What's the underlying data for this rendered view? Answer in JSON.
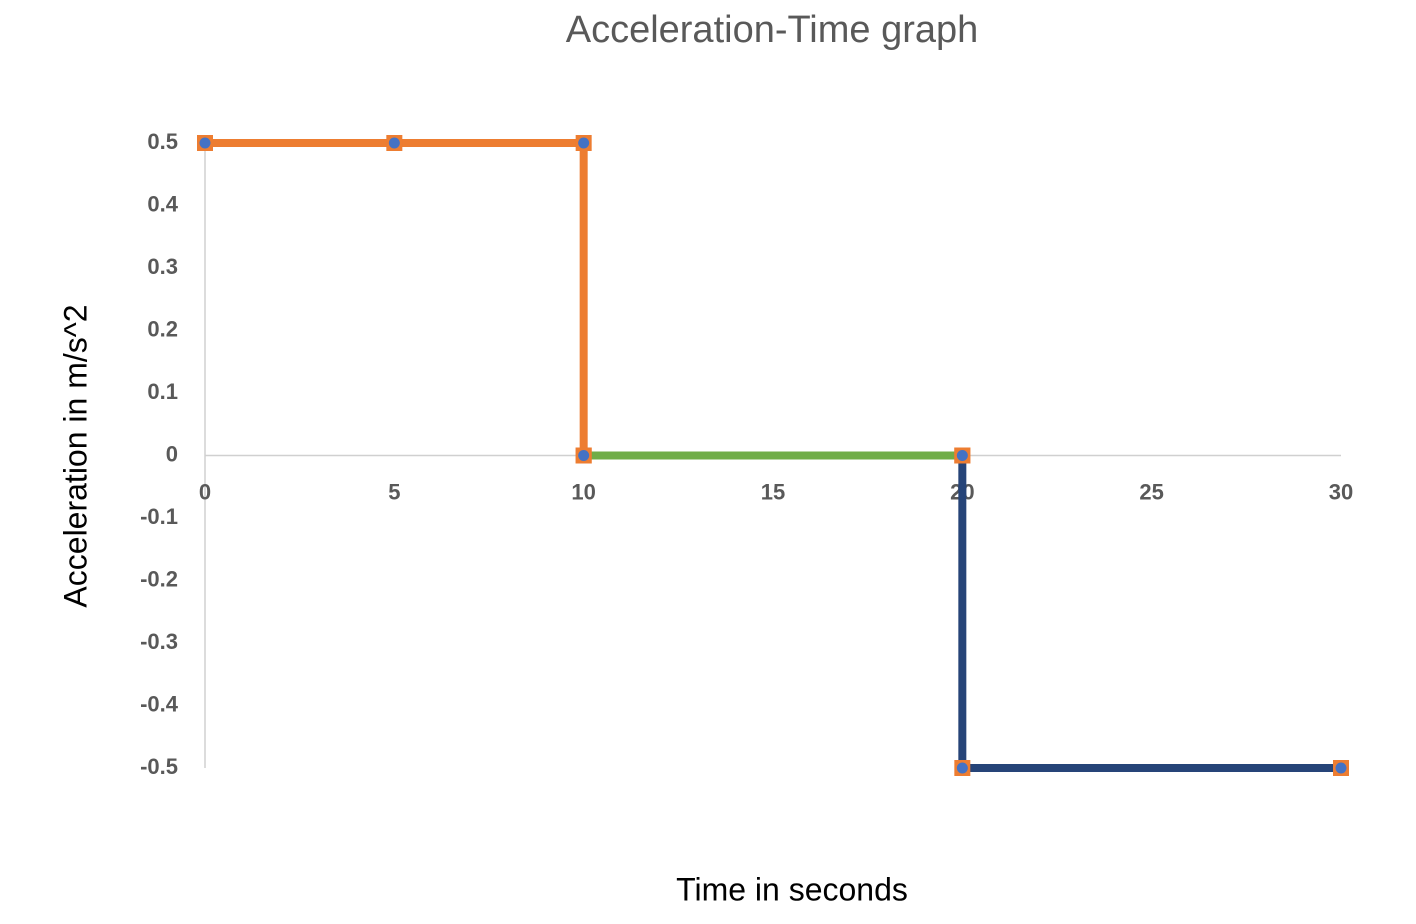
{
  "chart_data": {
    "type": "line",
    "title": "Acceleration-Time graph",
    "x_label": "Time in seconds",
    "y_label": "Acceleration in m/s^2",
    "series": [
      {
        "color": "#ed7d31",
        "x": [
          0,
          5,
          10,
          10
        ],
        "values": [
          0.5,
          0.5,
          0.5,
          0
        ]
      },
      {
        "color": "#70ad47",
        "x": [
          10,
          20
        ],
        "values": [
          0,
          0
        ]
      },
      {
        "color": "#264478",
        "x": [
          20,
          20,
          30
        ],
        "values": [
          0,
          -0.5,
          -0.5
        ]
      }
    ],
    "marker": {
      "fill": "#4472c4",
      "edge": "#ed7d31"
    },
    "xlim": [
      0,
      30
    ],
    "xticks": [
      0,
      5,
      10,
      15,
      20,
      25,
      30
    ],
    "ylim": [
      -0.5,
      0.5
    ],
    "yticks": [
      0.5,
      0.4,
      0.3,
      0.2,
      0.1,
      0,
      -0.1,
      -0.2,
      -0.3,
      -0.4,
      -0.5
    ],
    "grid": false
  }
}
